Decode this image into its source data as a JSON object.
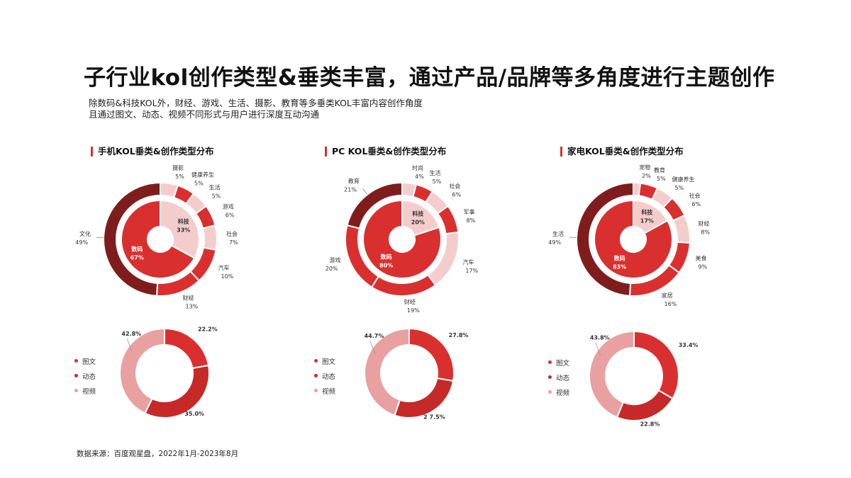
{
  "page": {
    "title": "子行业kol创作类型&垂类丰富，通过产品/品牌等多角度进行主题创作",
    "subtitle_line1": "除数码&科技KOL外，财经、游戏、生活、摄影、教育等多垂类KOL丰富内容创作角度",
    "subtitle_line2": "且通过图文、动态、视频不同形式与用户进行深度互动沟通",
    "source": "数据来源：百度观星盘，2022年1月-2023年8月"
  },
  "colors": {
    "accent": "#d9302f",
    "dark_red": "#7f1d1d",
    "red": "#d9302f",
    "pink": "#e9a0a1",
    "light_pink": "#f5cccc"
  },
  "chart_data": [
    {
      "type": "pie",
      "title": "手机KOL垂类&创作类型分布",
      "inner_ring": [
        {
          "name": "科技",
          "value": 33,
          "label": "33%"
        },
        {
          "name": "数码",
          "value": 67,
          "label": "67%"
        }
      ],
      "outer_ring": [
        {
          "name": "摄影",
          "value": 5,
          "label": "5%"
        },
        {
          "name": "健康养生",
          "value": 5,
          "label": "5%"
        },
        {
          "name": "生活",
          "value": 5,
          "label": "5%"
        },
        {
          "name": "游戏",
          "value": 6,
          "label": "6%"
        },
        {
          "name": "社会",
          "value": 7,
          "label": "7%"
        },
        {
          "name": "汽车",
          "value": 10,
          "label": "10%"
        },
        {
          "name": "财经",
          "value": 13,
          "label": "13%"
        },
        {
          "name": "文化",
          "value": 49,
          "label": "49%"
        }
      ]
    },
    {
      "type": "pie",
      "title": "PC KOL垂类&创作类型分布",
      "inner_ring": [
        {
          "name": "科技",
          "value": 20,
          "label": "20%"
        },
        {
          "name": "数码",
          "value": 80,
          "label": "80%"
        }
      ],
      "outer_ring": [
        {
          "name": "时尚",
          "value": 4,
          "label": "4%"
        },
        {
          "name": "生活",
          "value": 5,
          "label": "5%"
        },
        {
          "name": "社会",
          "value": 6,
          "label": "6%"
        },
        {
          "name": "军事",
          "value": 8,
          "label": "8%"
        },
        {
          "name": "汽车",
          "value": 17,
          "label": "17%"
        },
        {
          "name": "财经",
          "value": 19,
          "label": "19%"
        },
        {
          "name": "游戏",
          "value": 20,
          "label": "20%"
        },
        {
          "name": "教育",
          "value": 21,
          "label": "21%"
        }
      ]
    },
    {
      "type": "pie",
      "title": "家电KOL垂类&创作类型分布",
      "inner_ring": [
        {
          "name": "科技",
          "value": 17,
          "label": "17%"
        },
        {
          "name": "数码",
          "value": 83,
          "label": "83%"
        }
      ],
      "outer_ring": [
        {
          "name": "宠物",
          "value": 2,
          "label": "2%"
        },
        {
          "name": "教育",
          "value": 5,
          "label": "5%"
        },
        {
          "name": "健康养生",
          "value": 5,
          "label": "5%"
        },
        {
          "name": "社会",
          "value": 6,
          "label": "6%"
        },
        {
          "name": "财经",
          "value": 8,
          "label": "8%"
        },
        {
          "name": "美食",
          "value": 9,
          "label": "9%"
        },
        {
          "name": "家居",
          "value": 16,
          "label": "16%"
        },
        {
          "name": "生活",
          "value": 49,
          "label": "49%"
        }
      ]
    },
    {
      "type": "pie",
      "legend": [
        "图文",
        "动态",
        "视频"
      ],
      "slices": [
        {
          "name": "图文",
          "value": 22.2,
          "label": "22.2%"
        },
        {
          "name": "动态",
          "value": 35.0,
          "label": "35.0%"
        },
        {
          "name": "视频",
          "value": 42.8,
          "label": "42.8%"
        }
      ]
    },
    {
      "type": "pie",
      "legend": [
        "图文",
        "动态",
        "视频"
      ],
      "slices": [
        {
          "name": "图文",
          "value": 27.8,
          "label": "27.8%"
        },
        {
          "name": "动态",
          "value": 27.5,
          "label": "2 7.5%"
        },
        {
          "name": "视频",
          "value": 44.7,
          "label": "44.7%"
        }
      ]
    },
    {
      "type": "pie",
      "legend": [
        "图文",
        "动态",
        "视频"
      ],
      "slices": [
        {
          "name": "图文",
          "value": 33.4,
          "label": "33.4%"
        },
        {
          "name": "动态",
          "value": 22.8,
          "label": "22.8%"
        },
        {
          "name": "视频",
          "value": 43.8,
          "label": "43.8%"
        }
      ]
    }
  ]
}
